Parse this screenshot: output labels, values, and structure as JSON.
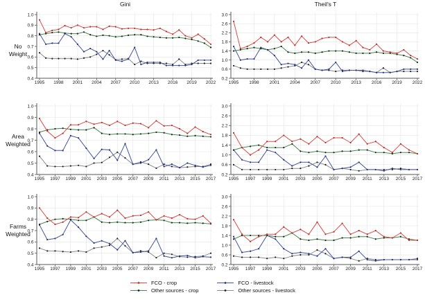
{
  "figure": {
    "column_titles": {
      "left": "Gini",
      "right": "Theil's T"
    },
    "row_labels": [
      "No\nWeight",
      "Area\nWeighted",
      "Farms\nWeighted"
    ]
  },
  "legend": {
    "items": [
      {
        "label": "FCO - crop",
        "color": "#dd4b45",
        "marker": "#a63632"
      },
      {
        "label": "Other sources - crop",
        "color": "#43884b",
        "marker": "#1c1c1c"
      },
      {
        "label": "FCO - livestock",
        "color": "#4253a3",
        "marker": "#27346e"
      },
      {
        "label": "Other sources - livestock",
        "color": "#8c8c8c",
        "marker": "#1c1c1c"
      }
    ]
  },
  "chart_data": [
    {
      "type": "line",
      "panel": "gini-no-weight",
      "measure": "Gini",
      "weight": "No Weight",
      "x_start": 1995,
      "x_end": 2022,
      "x_ticks": [
        1995,
        1998,
        2001,
        2004,
        2007,
        2010,
        2013,
        2016,
        2019,
        2022
      ],
      "ylim": [
        0.4,
        1.0
      ],
      "y_ticks": [
        0.4,
        0.5,
        0.6,
        0.7,
        0.8,
        0.9,
        1.0
      ],
      "grid": true,
      "series": [
        {
          "name": "FCO - crop",
          "values": [
            0.95,
            0.83,
            0.85,
            0.86,
            0.895,
            0.875,
            0.9,
            0.875,
            0.885,
            0.885,
            0.86,
            0.89,
            0.885,
            0.865,
            0.87,
            0.87,
            0.86,
            0.86,
            0.855,
            0.87,
            0.84,
            0.815,
            0.855,
            0.8,
            0.78,
            0.815,
            0.77,
            0.72
          ]
        },
        {
          "name": "Other sources - crop",
          "values": [
            0.81,
            0.82,
            0.83,
            0.835,
            0.825,
            0.82,
            0.82,
            0.835,
            0.81,
            0.795,
            0.805,
            0.8,
            0.79,
            0.795,
            0.805,
            0.81,
            0.81,
            0.795,
            0.79,
            0.785,
            0.78,
            0.78,
            0.785,
            0.775,
            0.765,
            0.75,
            0.73,
            0.69
          ]
        },
        {
          "name": "FCO - livestock",
          "values": [
            0.82,
            0.72,
            0.73,
            0.73,
            0.82,
            0.79,
            0.72,
            0.65,
            0.68,
            0.65,
            0.58,
            0.66,
            0.57,
            0.56,
            0.58,
            0.69,
            0.53,
            0.55,
            0.55,
            0.55,
            0.52,
            0.52,
            0.52,
            0.52,
            0.53,
            0.57,
            0.57,
            0.57
          ]
        },
        {
          "name": "Other sources - livestock",
          "values": [
            0.64,
            0.59,
            0.585,
            0.585,
            0.585,
            0.585,
            0.58,
            0.59,
            0.6,
            0.625,
            0.66,
            0.62,
            0.575,
            0.58,
            0.585,
            0.53,
            0.56,
            0.54,
            0.54,
            0.54,
            0.54,
            0.53,
            0.58,
            0.53,
            0.54,
            0.54,
            0.54,
            0.54
          ]
        }
      ]
    },
    {
      "type": "line",
      "panel": "theil-no-weight",
      "measure": "Theil's T",
      "weight": "No Weight",
      "x_start": 1995,
      "x_end": 2022,
      "x_ticks": [
        1995,
        1998,
        2001,
        2004,
        2007,
        2010,
        2013,
        2016,
        2019,
        2022
      ],
      "ylim": [
        0.2,
        3.0
      ],
      "y_ticks": [
        0.2,
        0.6,
        1.0,
        1.4,
        1.8,
        2.2,
        2.6,
        3.0
      ],
      "grid": true,
      "series": [
        {
          "name": "FCO - crop",
          "values": [
            2.7,
            1.5,
            1.6,
            1.75,
            2.0,
            1.8,
            2.1,
            1.8,
            2.0,
            1.65,
            2.05,
            1.75,
            1.8,
            1.95,
            2.0,
            2.0,
            1.8,
            1.65,
            1.85,
            1.55,
            1.45,
            1.7,
            1.4,
            1.35,
            1.3,
            1.45,
            1.2,
            1.05
          ]
        },
        {
          "name": "Other sources - crop",
          "values": [
            1.4,
            1.45,
            1.5,
            1.55,
            1.5,
            1.45,
            1.5,
            1.6,
            1.35,
            1.3,
            1.35,
            1.35,
            1.3,
            1.35,
            1.4,
            1.4,
            1.4,
            1.35,
            1.3,
            1.3,
            1.3,
            1.35,
            1.3,
            1.3,
            1.25,
            1.2,
            1.1,
            0.9
          ]
        },
        {
          "name": "FCO - livestock",
          "values": [
            1.6,
            1.0,
            1.05,
            1.05,
            1.55,
            1.45,
            1.2,
            0.8,
            0.85,
            0.8,
            0.65,
            1.0,
            0.6,
            0.55,
            0.6,
            0.9,
            0.5,
            0.55,
            0.55,
            0.55,
            0.5,
            0.45,
            0.45,
            0.45,
            0.5,
            0.6,
            0.6,
            0.6
          ]
        },
        {
          "name": "Other sources - livestock",
          "values": [
            0.75,
            0.65,
            0.6,
            0.6,
            0.6,
            0.6,
            0.6,
            0.65,
            0.7,
            0.75,
            0.9,
            0.8,
            0.6,
            0.55,
            0.55,
            0.5,
            0.55,
            0.55,
            0.55,
            0.5,
            0.5,
            0.45,
            0.65,
            0.45,
            0.5,
            0.5,
            0.5,
            0.5
          ]
        }
      ]
    },
    {
      "type": "line",
      "panel": "gini-area-weighted",
      "measure": "Gini",
      "weight": "Area Weighted",
      "x_start": 1995,
      "x_end": 2017,
      "x_ticks": [
        1995,
        1997,
        1999,
        2001,
        2003,
        2005,
        2007,
        2009,
        2011,
        2013,
        2015,
        2017
      ],
      "ylim": [
        0.4,
        1.0
      ],
      "y_ticks": [
        0.4,
        0.5,
        0.6,
        0.7,
        0.8,
        0.9,
        1.0
      ],
      "grid": true,
      "series": [
        {
          "name": "FCO - crop",
          "values": [
            0.89,
            0.78,
            0.72,
            0.76,
            0.835,
            0.835,
            0.865,
            0.84,
            0.855,
            0.83,
            0.865,
            0.83,
            0.85,
            0.845,
            0.81,
            0.87,
            0.825,
            0.83,
            0.8,
            0.76,
            0.815,
            0.775,
            0.75
          ]
        },
        {
          "name": "Other sources - crop",
          "values": [
            0.77,
            0.79,
            0.8,
            0.805,
            0.795,
            0.79,
            0.79,
            0.81,
            0.76,
            0.75,
            0.755,
            0.755,
            0.75,
            0.755,
            0.76,
            0.77,
            0.765,
            0.75,
            0.745,
            0.735,
            0.74,
            0.735,
            0.73
          ]
        },
        {
          "name": "FCO - livestock",
          "values": [
            0.76,
            0.65,
            0.61,
            0.61,
            0.74,
            0.72,
            0.63,
            0.54,
            0.62,
            0.615,
            0.525,
            0.67,
            0.49,
            0.5,
            0.53,
            0.615,
            0.47,
            0.49,
            0.46,
            0.5,
            0.48,
            0.465,
            0.48
          ]
        },
        {
          "name": "Other sources - livestock",
          "values": [
            0.56,
            0.475,
            0.47,
            0.47,
            0.475,
            0.48,
            0.47,
            0.5,
            0.505,
            0.55,
            0.595,
            0.545,
            0.49,
            0.51,
            0.49,
            0.455,
            0.49,
            0.47,
            0.46,
            0.465,
            0.47,
            0.47,
            0.49
          ]
        }
      ]
    },
    {
      "type": "line",
      "panel": "theil-area-weighted",
      "measure": "Theil's T",
      "weight": "Area Weighted",
      "x_start": 1995,
      "x_end": 2017,
      "x_ticks": [
        1995,
        1997,
        1999,
        2001,
        2003,
        2005,
        2007,
        2009,
        2011,
        2013,
        2015,
        2017
      ],
      "ylim": [
        0.2,
        3.0
      ],
      "y_ticks": [
        0.2,
        0.6,
        1.0,
        1.4,
        1.8,
        2.2,
        2.6,
        3.0
      ],
      "grid": true,
      "series": [
        {
          "name": "FCO - crop",
          "values": [
            1.9,
            1.3,
            1.0,
            1.2,
            1.55,
            1.55,
            1.8,
            1.55,
            1.65,
            1.45,
            1.75,
            1.5,
            1.7,
            1.7,
            1.5,
            1.85,
            1.45,
            1.55,
            1.3,
            1.1,
            1.45,
            1.2,
            1.05
          ]
        },
        {
          "name": "Other sources - crop",
          "values": [
            1.2,
            1.3,
            1.35,
            1.4,
            1.3,
            1.3,
            1.3,
            1.45,
            1.15,
            1.1,
            1.15,
            1.1,
            1.1,
            1.15,
            1.15,
            1.2,
            1.2,
            1.1,
            1.1,
            1.05,
            1.1,
            1.1,
            1.05
          ]
        },
        {
          "name": "FCO - livestock",
          "values": [
            1.2,
            0.8,
            0.7,
            0.7,
            1.2,
            1.1,
            0.8,
            0.55,
            0.7,
            0.7,
            0.5,
            0.95,
            0.4,
            0.45,
            0.5,
            0.7,
            0.4,
            0.4,
            0.35,
            0.45,
            0.4,
            0.4,
            0.4
          ]
        },
        {
          "name": "Other sources - livestock",
          "values": [
            0.6,
            0.4,
            0.4,
            0.4,
            0.4,
            0.4,
            0.4,
            0.45,
            0.45,
            0.55,
            0.7,
            0.6,
            0.4,
            0.45,
            0.4,
            0.35,
            0.4,
            0.4,
            0.4,
            0.4,
            0.45,
            0.4,
            0.4
          ]
        }
      ]
    },
    {
      "type": "line",
      "panel": "gini-farms-weighted",
      "measure": "Gini",
      "weight": "Farms Weighted",
      "x_start": 1995,
      "x_end": 2017,
      "x_ticks": [
        1995,
        1997,
        1999,
        2001,
        2003,
        2005,
        2007,
        2009,
        2011,
        2013,
        2015,
        2017
      ],
      "ylim": [
        0.4,
        1.0
      ],
      "y_ticks": [
        0.4,
        0.5,
        0.6,
        0.7,
        0.8,
        0.9,
        1.0
      ],
      "grid": true,
      "series": [
        {
          "name": "FCO - crop",
          "values": [
            0.9,
            0.81,
            0.755,
            0.775,
            0.82,
            0.815,
            0.865,
            0.82,
            0.85,
            0.82,
            0.88,
            0.81,
            0.83,
            0.835,
            0.865,
            0.795,
            0.83,
            0.81,
            0.84,
            0.805,
            0.8,
            0.83,
            0.765
          ]
        },
        {
          "name": "Other sources - crop",
          "values": [
            0.755,
            0.78,
            0.8,
            0.805,
            0.8,
            0.79,
            0.79,
            0.82,
            0.775,
            0.77,
            0.775,
            0.77,
            0.77,
            0.775,
            0.79,
            0.795,
            0.79,
            0.77,
            0.77,
            0.765,
            0.77,
            0.765,
            0.76
          ]
        },
        {
          "name": "FCO - livestock",
          "values": [
            0.75,
            0.62,
            0.63,
            0.665,
            0.795,
            0.73,
            0.65,
            0.59,
            0.61,
            0.585,
            0.53,
            0.61,
            0.505,
            0.51,
            0.52,
            0.63,
            0.475,
            0.46,
            0.475,
            0.48,
            0.46,
            0.47,
            0.465
          ]
        },
        {
          "name": "Other sources - livestock",
          "values": [
            0.545,
            0.52,
            0.52,
            0.515,
            0.51,
            0.52,
            0.51,
            0.545,
            0.555,
            0.57,
            0.63,
            0.565,
            0.505,
            0.52,
            0.51,
            0.46,
            0.5,
            0.49,
            0.47,
            0.465,
            0.47,
            0.475,
            0.5
          ]
        }
      ]
    },
    {
      "type": "line",
      "panel": "theil-farms-weighted",
      "measure": "Theil's T",
      "weight": "Farms Weighted",
      "x_start": 1995,
      "x_end": 2017,
      "x_ticks": [
        1995,
        1997,
        1999,
        2001,
        2003,
        2005,
        2007,
        2009,
        2011,
        2013,
        2015,
        2017
      ],
      "ylim": [
        0.2,
        3.0
      ],
      "y_ticks": [
        0.2,
        0.6,
        1.0,
        1.4,
        1.8,
        2.2,
        2.6,
        3.0
      ],
      "grid": true,
      "series": [
        {
          "name": "FCO - crop",
          "values": [
            2.05,
            1.45,
            1.15,
            1.35,
            1.45,
            1.45,
            1.75,
            1.5,
            1.65,
            1.45,
            1.95,
            1.45,
            1.55,
            1.9,
            1.45,
            1.6,
            1.45,
            1.6,
            1.35,
            1.3,
            1.5,
            1.2,
            1.2
          ]
        },
        {
          "name": "Other sources - crop",
          "values": [
            1.25,
            1.4,
            1.4,
            1.4,
            1.4,
            1.35,
            1.35,
            1.5,
            1.25,
            1.2,
            1.25,
            1.2,
            1.2,
            1.3,
            1.3,
            1.35,
            1.35,
            1.25,
            1.3,
            1.3,
            1.35,
            1.25,
            1.2
          ]
        },
        {
          "name": "FCO - livestock",
          "values": [
            1.35,
            0.7,
            0.75,
            0.85,
            1.4,
            1.25,
            0.85,
            0.65,
            0.7,
            0.65,
            0.55,
            0.85,
            0.45,
            0.5,
            0.5,
            0.75,
            0.4,
            0.35,
            0.4,
            0.4,
            0.4,
            0.4,
            0.4
          ]
        },
        {
          "name": "Other sources - livestock",
          "values": [
            0.55,
            0.5,
            0.5,
            0.5,
            0.45,
            0.5,
            0.45,
            0.55,
            0.6,
            0.6,
            0.8,
            0.65,
            0.45,
            0.5,
            0.45,
            0.35,
            0.45,
            0.4,
            0.4,
            0.4,
            0.4,
            0.4,
            0.45
          ]
        }
      ]
    }
  ]
}
